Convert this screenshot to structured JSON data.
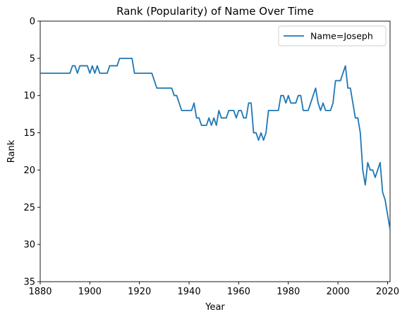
{
  "chart_data": {
    "type": "line",
    "title": "Rank (Popularity) of Name Over Time",
    "xlabel": "Year",
    "ylabel": "Rank",
    "xlim": [
      1880,
      2021
    ],
    "ylim": [
      35,
      0
    ],
    "y_inverted": true,
    "xticks": [
      1880,
      1900,
      1920,
      1940,
      1960,
      1980,
      2000,
      2020
    ],
    "yticks": [
      0,
      5,
      10,
      15,
      20,
      25,
      30,
      35
    ],
    "grid": false,
    "legend_position": "top-right",
    "series": [
      {
        "name": "Name=Joseph",
        "color": "#1f77b4",
        "x": [
          1880,
          1881,
          1882,
          1883,
          1884,
          1885,
          1886,
          1887,
          1888,
          1889,
          1890,
          1891,
          1892,
          1893,
          1894,
          1895,
          1896,
          1897,
          1898,
          1899,
          1900,
          1901,
          1902,
          1903,
          1904,
          1905,
          1906,
          1907,
          1908,
          1909,
          1910,
          1911,
          1912,
          1913,
          1914,
          1915,
          1916,
          1917,
          1918,
          1919,
          1920,
          1921,
          1922,
          1923,
          1924,
          1925,
          1926,
          1927,
          1928,
          1929,
          1930,
          1931,
          1932,
          1933,
          1934,
          1935,
          1936,
          1937,
          1938,
          1939,
          1940,
          1941,
          1942,
          1943,
          1944,
          1945,
          1946,
          1947,
          1948,
          1949,
          1950,
          1951,
          1952,
          1953,
          1954,
          1955,
          1956,
          1957,
          1958,
          1959,
          1960,
          1961,
          1962,
          1963,
          1964,
          1965,
          1966,
          1967,
          1968,
          1969,
          1970,
          1971,
          1972,
          1973,
          1974,
          1975,
          1976,
          1977,
          1978,
          1979,
          1980,
          1981,
          1982,
          1983,
          1984,
          1985,
          1986,
          1987,
          1988,
          1989,
          1990,
          1991,
          1992,
          1993,
          1994,
          1995,
          1996,
          1997,
          1998,
          1999,
          2000,
          2001,
          2002,
          2003,
          2004,
          2005,
          2006,
          2007,
          2008,
          2009,
          2010,
          2011,
          2012,
          2013,
          2014,
          2015,
          2016,
          2017,
          2018,
          2019,
          2020,
          2021
        ],
        "y": [
          7,
          7,
          7,
          7,
          7,
          7,
          7,
          7,
          7,
          7,
          7,
          7,
          7,
          6,
          6,
          7,
          6,
          6,
          6,
          6,
          7,
          6,
          7,
          6,
          7,
          7,
          7,
          7,
          6,
          6,
          6,
          6,
          5,
          5,
          5,
          5,
          5,
          5,
          7,
          7,
          7,
          7,
          7,
          7,
          7,
          7,
          8,
          9,
          9,
          9,
          9,
          9,
          9,
          9,
          10,
          10,
          11,
          12,
          12,
          12,
          12,
          12,
          11,
          13,
          13,
          14,
          14,
          14,
          13,
          14,
          13,
          14,
          12,
          13,
          13,
          13,
          12,
          12,
          12,
          13,
          12,
          12,
          13,
          13,
          11,
          11,
          15,
          15,
          16,
          15,
          16,
          15,
          12,
          12,
          12,
          12,
          12,
          10,
          10,
          11,
          10,
          11,
          11,
          11,
          10,
          10,
          12,
          12,
          12,
          11,
          10,
          9,
          11,
          12,
          11,
          12,
          12,
          12,
          11,
          8,
          8,
          8,
          7,
          6,
          9,
          9,
          11,
          13,
          13,
          15,
          20,
          22,
          19,
          20,
          20,
          21,
          20,
          19,
          23,
          24,
          26,
          28
        ]
      }
    ]
  }
}
